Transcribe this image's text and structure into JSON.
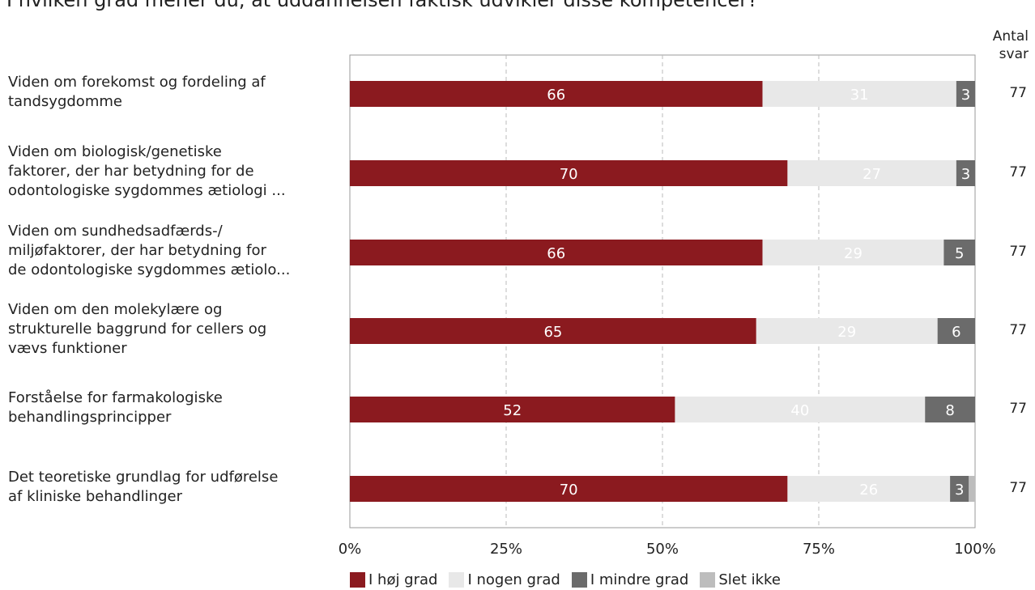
{
  "title": "I hvilken grad mener du, at uddannelsen faktisk udvikler disse kompetencer?",
  "count_header": [
    "Antal",
    "svar"
  ],
  "colors": {
    "hoj": "#8b1a1f",
    "nogen": "#e8e8e8",
    "mindre": "#6b6b6b",
    "slet": "#bdbdbd",
    "grid": "#bbbbbb",
    "frame": "#999999"
  },
  "chart_data": {
    "type": "bar",
    "orientation": "horizontal",
    "stacked": true,
    "categories": [
      [
        "Viden om forekomst og fordeling af",
        "tandsygdomme"
      ],
      [
        "Viden om biologisk/genetiske",
        "faktorer, der har betydning for de",
        "odontologiske sygdommes ætiologi ..."
      ],
      [
        "Viden om sundhedsadfærds-/",
        "miljøfaktorer, der har betydning for",
        "de odontologiske sygdommes ætiolo..."
      ],
      [
        "Viden om den molekylære og",
        "strukturelle baggrund for cellers og",
        "vævs funktioner"
      ],
      [
        "Forståelse for farmakologiske",
        "behandlingsprincipper"
      ],
      [
        "Det teoretiske grundlag for udførelse",
        "af kliniske behandlinger"
      ]
    ],
    "series": [
      {
        "name": "I høj grad",
        "color_key": "hoj",
        "values": [
          66,
          70,
          66,
          65,
          52,
          70
        ],
        "labels": [
          "66",
          "70",
          "66",
          "65",
          "52",
          "70"
        ]
      },
      {
        "name": "I nogen grad",
        "color_key": "nogen",
        "values": [
          31,
          27,
          29,
          29,
          40,
          26
        ],
        "labels": [
          "31",
          "27",
          "29",
          "29",
          "40",
          "26"
        ]
      },
      {
        "name": "I mindre grad",
        "color_key": "mindre",
        "values": [
          3,
          3,
          5,
          6,
          8,
          3
        ],
        "labels": [
          "3",
          "3",
          "5",
          "6",
          "8",
          "3"
        ]
      },
      {
        "name": "Slet ikke",
        "color_key": "slet",
        "values": [
          0,
          0,
          0,
          0,
          0,
          1
        ],
        "labels": [
          "",
          "",
          "",
          "",
          "",
          ""
        ]
      }
    ],
    "counts": [
      "77",
      "77",
      "77",
      "77",
      "77",
      "77"
    ],
    "x_ticks": [
      "0%",
      "25%",
      "50%",
      "75%",
      "100%"
    ],
    "xlim": [
      0,
      100
    ],
    "grid": true,
    "legend_position": "bottom"
  }
}
